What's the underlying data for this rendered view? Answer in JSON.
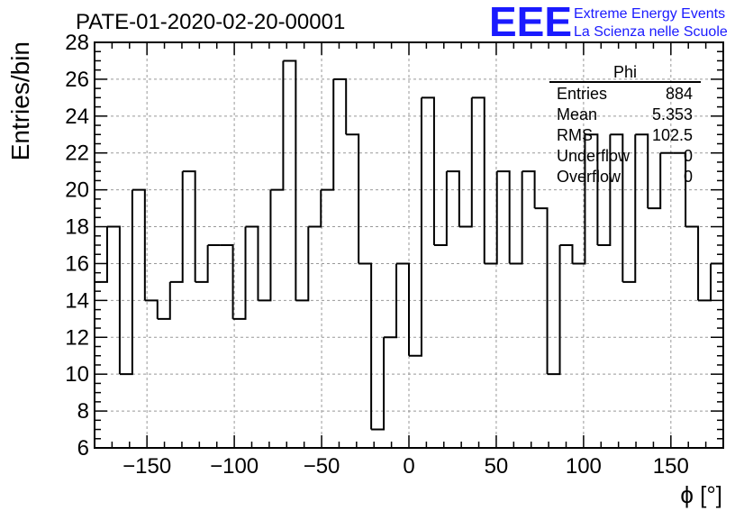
{
  "chart_data": {
    "type": "histogram",
    "title": "PATE-01-2020-02-20-00001",
    "xlabel": "ϕ [°]",
    "ylabel": "Entries/bin",
    "xlim": [
      -180,
      180
    ],
    "ylim": [
      6,
      28
    ],
    "bin_width": 7.2,
    "bin_edges_start": -180,
    "x_ticks": [
      -150,
      -100,
      -50,
      0,
      50,
      100,
      150
    ],
    "x_tick_labels": [
      "−150",
      "−100",
      "−50",
      "0",
      "50",
      "100",
      "150"
    ],
    "y_ticks": [
      6,
      8,
      10,
      12,
      14,
      16,
      18,
      20,
      22,
      24,
      26,
      28
    ],
    "y_tick_labels": [
      "6",
      "8",
      "10",
      "12",
      "14",
      "16",
      "18",
      "20",
      "22",
      "24",
      "26",
      "28"
    ],
    "grid": true,
    "values": [
      15,
      18,
      10,
      20,
      14,
      13,
      15,
      21,
      15,
      17,
      17,
      13,
      18,
      14,
      20,
      27,
      14,
      18,
      20,
      26,
      23,
      16,
      7,
      12,
      16,
      11,
      25,
      17,
      21,
      18,
      25,
      16,
      21,
      16,
      21,
      19,
      10,
      17,
      16,
      23,
      17,
      23,
      15,
      23,
      19,
      22,
      22,
      18,
      14,
      16
    ],
    "stats_box": {
      "title": "Phi",
      "rows": [
        {
          "label": "Entries",
          "value": "884"
        },
        {
          "label": "Mean",
          "value": "5.353"
        },
        {
          "label": "RMS",
          "value": "102.5"
        },
        {
          "label": "Underflow",
          "value": "0"
        },
        {
          "label": "Overflow",
          "value": "0"
        }
      ]
    }
  },
  "logo": {
    "mark": "EEE",
    "line1": "Extreme Energy Events",
    "line2": "La Scienza nelle Scuole",
    "color": "#1a1aff"
  }
}
